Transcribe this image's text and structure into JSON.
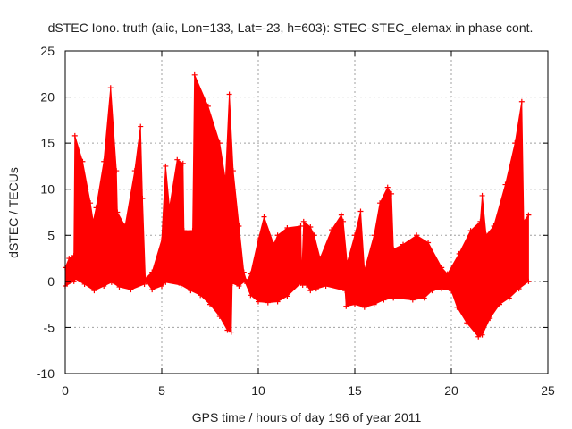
{
  "chart_data": {
    "type": "area",
    "title": "dSTEC Iono. truth (alic, Lon=133, Lat=-23, h=603): STEC-STEC_elemax in phase cont.",
    "xlabel": "GPS time / hours of day 196 of year 2011",
    "ylabel": "dSTEC  / TECUs",
    "xlim": [
      0,
      25
    ],
    "ylim": [
      -10,
      25
    ],
    "xticks": [
      "0",
      "5",
      "10",
      "15",
      "20",
      "25"
    ],
    "yticks": [
      "-10",
      "-5",
      "0",
      "5",
      "10",
      "15",
      "20",
      "25"
    ],
    "grid": true,
    "series": [
      {
        "color": "#ff0000",
        "marker": "+",
        "upper": [
          [
            0.0,
            1.5
          ],
          [
            0.2,
            2.5
          ],
          [
            0.45,
            2.8
          ],
          [
            0.5,
            15.8
          ],
          [
            0.9,
            13.0
          ],
          [
            1.3,
            8.5
          ],
          [
            1.45,
            6.5
          ],
          [
            1.6,
            8.0
          ],
          [
            2.0,
            13.0
          ],
          [
            2.35,
            21.0
          ],
          [
            2.65,
            12.0
          ],
          [
            2.7,
            7.5
          ],
          [
            3.1,
            6.0
          ],
          [
            3.6,
            12.0
          ],
          [
            3.9,
            16.8
          ],
          [
            4.0,
            9.0
          ],
          [
            4.15,
            0.3
          ],
          [
            4.5,
            1.0
          ],
          [
            5.0,
            4.5
          ],
          [
            5.2,
            12.5
          ],
          [
            5.4,
            8.0
          ],
          [
            5.8,
            13.2
          ],
          [
            6.1,
            12.8
          ],
          [
            6.15,
            5.5
          ],
          [
            6.6,
            5.5
          ],
          [
            6.7,
            22.4
          ],
          [
            7.4,
            19.0
          ],
          [
            8.0,
            15.0
          ],
          [
            8.3,
            11.0
          ],
          [
            8.5,
            20.3
          ],
          [
            8.7,
            12.0
          ],
          [
            9.0,
            6.0
          ],
          [
            9.25,
            1.0
          ],
          [
            9.4,
            0.0
          ],
          [
            9.6,
            0.8
          ],
          [
            10.0,
            4.5
          ],
          [
            10.3,
            7.0
          ],
          [
            10.8,
            4.0
          ],
          [
            11.0,
            5.0
          ],
          [
            11.5,
            5.8
          ],
          [
            12.2,
            6.0
          ],
          [
            12.25,
            0.5
          ],
          [
            12.35,
            6.5
          ],
          [
            12.7,
            5.9
          ],
          [
            12.9,
            5.0
          ],
          [
            13.2,
            2.5
          ],
          [
            13.8,
            5.6
          ],
          [
            14.3,
            7.2
          ],
          [
            14.4,
            6.5
          ],
          [
            14.6,
            2.0
          ],
          [
            15.0,
            5.0
          ],
          [
            15.3,
            7.6
          ],
          [
            15.5,
            1.2
          ],
          [
            16.0,
            5.0
          ],
          [
            16.3,
            8.5
          ],
          [
            16.7,
            10.2
          ],
          [
            16.9,
            9.5
          ],
          [
            17.0,
            3.5
          ],
          [
            17.5,
            4.0
          ],
          [
            18.2,
            5.0
          ],
          [
            18.8,
            4.2
          ],
          [
            19.5,
            1.5
          ],
          [
            19.8,
            0.8
          ],
          [
            20.4,
            3.0
          ],
          [
            21.0,
            5.5
          ],
          [
            21.5,
            6.5
          ],
          [
            21.6,
            9.3
          ],
          [
            21.8,
            5.0
          ],
          [
            22.2,
            6.0
          ],
          [
            22.8,
            10.5
          ],
          [
            23.3,
            15.0
          ],
          [
            23.65,
            19.5
          ],
          [
            23.75,
            6.5
          ],
          [
            24.0,
            7.2
          ]
        ],
        "lower": [
          [
            0.0,
            -0.5
          ],
          [
            0.45,
            0.0
          ],
          [
            0.5,
            0.3
          ],
          [
            1.0,
            -0.3
          ],
          [
            1.5,
            -1.0
          ],
          [
            2.0,
            -0.5
          ],
          [
            2.4,
            -0.1
          ],
          [
            2.8,
            -0.6
          ],
          [
            3.4,
            -0.9
          ],
          [
            4.1,
            -0.3
          ],
          [
            4.2,
            0.0
          ],
          [
            4.5,
            -0.9
          ],
          [
            5.0,
            -0.5
          ],
          [
            5.2,
            -0.1
          ],
          [
            6.0,
            -0.4
          ],
          [
            6.5,
            -1.0
          ],
          [
            7.0,
            -1.5
          ],
          [
            7.5,
            -2.5
          ],
          [
            8.0,
            -3.8
          ],
          [
            8.4,
            -5.3
          ],
          [
            8.6,
            -5.5
          ],
          [
            8.65,
            -0.2
          ],
          [
            9.0,
            -0.5
          ],
          [
            9.3,
            0.0
          ],
          [
            9.6,
            -1.5
          ],
          [
            10.0,
            -2.2
          ],
          [
            10.5,
            -2.3
          ],
          [
            11.0,
            -2.2
          ],
          [
            11.5,
            -1.6
          ],
          [
            12.2,
            -0.2
          ],
          [
            12.3,
            -0.4
          ],
          [
            12.5,
            -0.4
          ],
          [
            12.7,
            -1.0
          ],
          [
            13.0,
            -0.8
          ],
          [
            13.5,
            -0.5
          ],
          [
            14.5,
            -1.0
          ],
          [
            14.55,
            -2.7
          ],
          [
            15.0,
            -2.5
          ],
          [
            15.5,
            -2.8
          ],
          [
            16.0,
            -2.5
          ],
          [
            16.5,
            -2.0
          ],
          [
            17.0,
            -1.8
          ],
          [
            18.0,
            -2.0
          ],
          [
            18.6,
            -1.8
          ],
          [
            19.0,
            -1.0
          ],
          [
            19.5,
            -0.8
          ],
          [
            20.0,
            -1.0
          ],
          [
            20.3,
            -2.8
          ],
          [
            20.8,
            -4.5
          ],
          [
            21.4,
            -6.0
          ],
          [
            21.6,
            -5.8
          ],
          [
            22.0,
            -4.0
          ],
          [
            22.5,
            -2.5
          ],
          [
            23.0,
            -1.8
          ],
          [
            23.5,
            -0.8
          ],
          [
            24.0,
            0.0
          ]
        ]
      }
    ]
  }
}
